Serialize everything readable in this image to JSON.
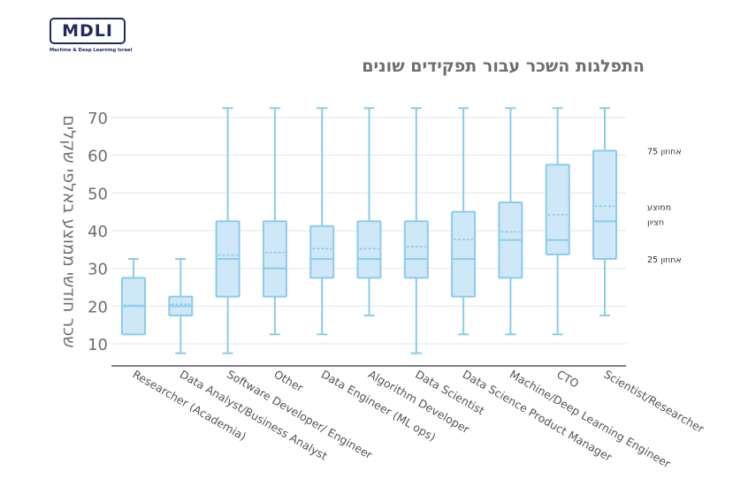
{
  "logo": {
    "text": "MDLI",
    "subtitle": "Machine & Deep Learning Israel"
  },
  "chart_data": {
    "type": "box",
    "title": "התפלגות השכר עבור תפקידים שונים",
    "ylabel": "שכר חודשי ממוצע באלפי שקלים",
    "xlabel": "",
    "ylim": [
      5,
      73
    ],
    "yticks": [
      10,
      20,
      30,
      40,
      50,
      60,
      70
    ],
    "grid": true,
    "colors": {
      "box_fill": "#cfe8f8",
      "box_stroke": "#8ccbeb",
      "grid": "#e6e6e6",
      "axis": "#555555",
      "tick_text": "#6e6e6e"
    },
    "categories": [
      "Researcher (Academia)",
      "Data Analyst/Business Analyst",
      "Software Developer/ Engineer",
      "Other",
      "Data Engineer (ML ops)",
      "Algorithm Developer",
      "Data Scientist",
      "Data Science Product Manager",
      "Machine/Deep Learning Engineer",
      "CTO",
      "Scientist/Researcher"
    ],
    "boxes": [
      {
        "min": 12.5,
        "q1": 12.5,
        "median": 20,
        "mean": 20.2,
        "q3": 27.5,
        "max": 32.5
      },
      {
        "min": 7.5,
        "q1": 17.5,
        "median": 20,
        "mean": 20.5,
        "q3": 22.5,
        "max": 32.5
      },
      {
        "min": 7.5,
        "q1": 22.5,
        "median": 32.5,
        "mean": 33.5,
        "q3": 42.5,
        "max": 72.5
      },
      {
        "min": 12.5,
        "q1": 22.5,
        "median": 30,
        "mean": 34.2,
        "q3": 42.5,
        "max": 72.5
      },
      {
        "min": 12.5,
        "q1": 27.5,
        "median": 32.5,
        "mean": 35.2,
        "q3": 41.2,
        "max": 72.5
      },
      {
        "min": 17.5,
        "q1": 27.5,
        "median": 32.5,
        "mean": 35.2,
        "q3": 42.5,
        "max": 72.5
      },
      {
        "min": 7.5,
        "q1": 27.5,
        "median": 32.5,
        "mean": 35.7,
        "q3": 42.5,
        "max": 72.5
      },
      {
        "min": 12.5,
        "q1": 22.5,
        "median": 32.5,
        "mean": 37.7,
        "q3": 45,
        "max": 72.5
      },
      {
        "min": 12.5,
        "q1": 27.5,
        "median": 37.5,
        "mean": 39.7,
        "q3": 47.5,
        "max": 72.5
      },
      {
        "min": 12.5,
        "q1": 33.7,
        "median": 37.5,
        "mean": 44.2,
        "q3": 57.5,
        "max": 72.5
      },
      {
        "min": 17.5,
        "q1": 32.5,
        "median": 42.5,
        "mean": 46.5,
        "q3": 61.2,
        "max": 72.5
      }
    ],
    "annotations": [
      {
        "text": "אחוזון 75",
        "value": 61.2
      },
      {
        "text": "ממוצע",
        "value": 46.5
      },
      {
        "text": "חציון",
        "value": 42.5
      },
      {
        "text": "אחוזון 25",
        "value": 32.5
      }
    ]
  }
}
